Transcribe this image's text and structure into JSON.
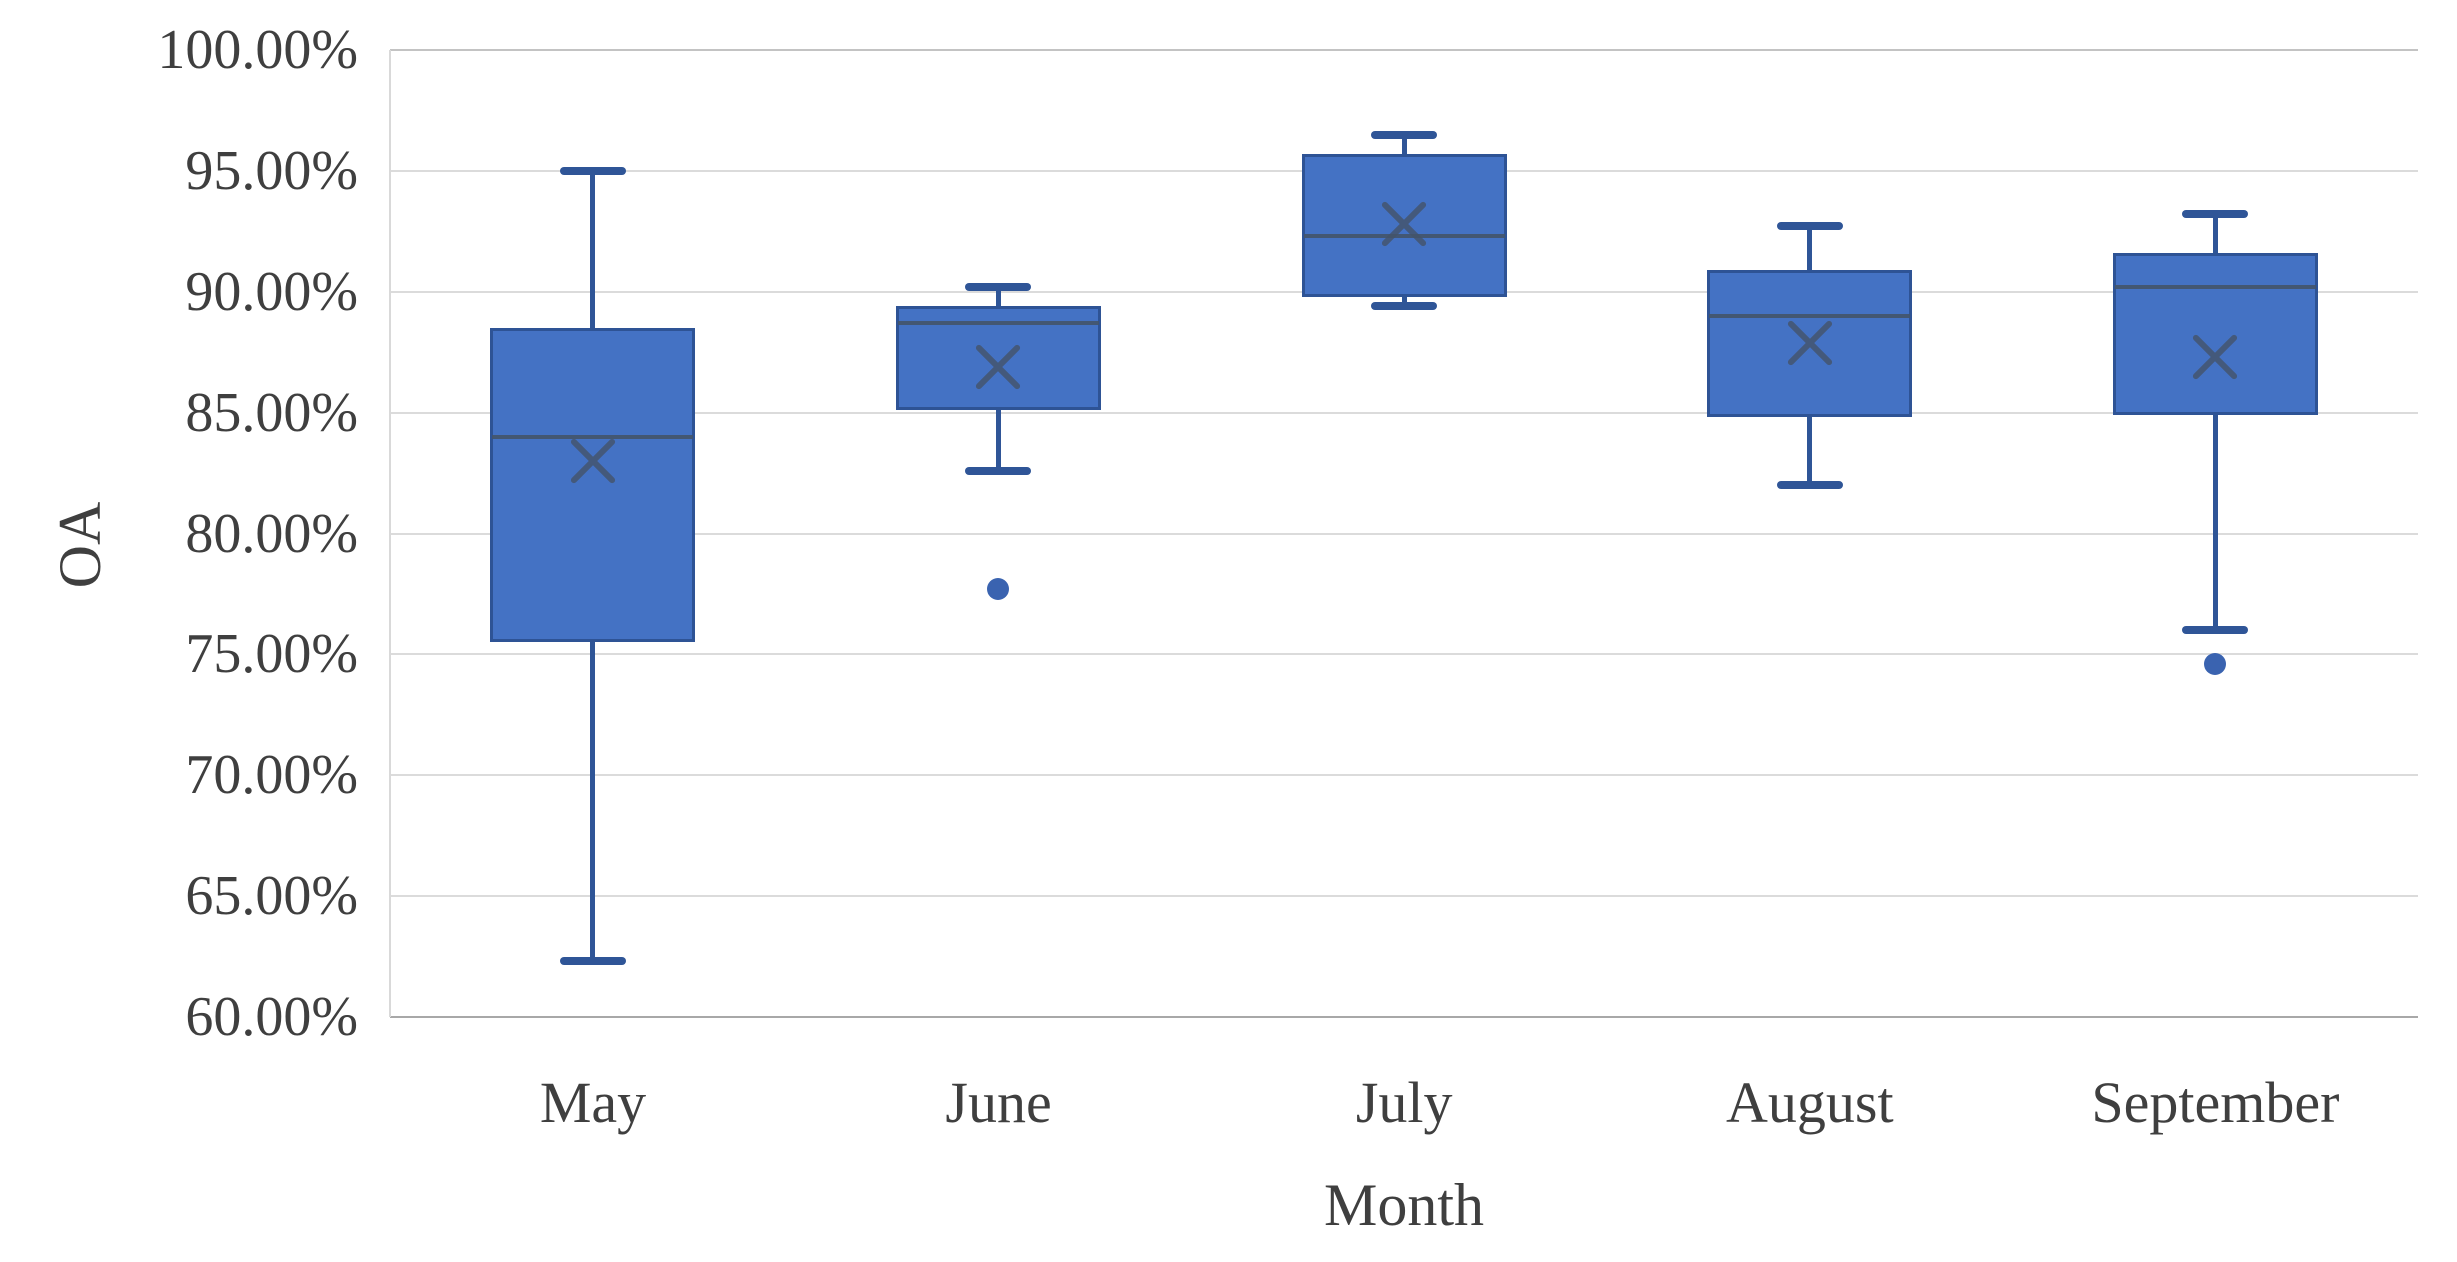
{
  "chart_data": {
    "type": "box",
    "title": "",
    "xlabel": "Month",
    "ylabel": "OA",
    "y_axis": {
      "min": 60,
      "max": 100,
      "step": 5,
      "unit": "%",
      "grid": true,
      "tick_labels": [
        "100.00%",
        "95.00%",
        "90.00%",
        "85.00%",
        "80.00%",
        "75.00%",
        "70.00%",
        "65.00%",
        "60.00%"
      ]
    },
    "categories": [
      "May",
      "June",
      "July",
      "August",
      "September"
    ],
    "series": [
      {
        "category": "May",
        "whisker_low": 62.3,
        "q1": 75.5,
        "median": 84.0,
        "mean": 83.0,
        "q3": 88.5,
        "whisker_high": 95.0,
        "outliers": []
      },
      {
        "category": "June",
        "whisker_low": 82.6,
        "q1": 85.1,
        "median": 88.7,
        "mean": 86.9,
        "q3": 89.4,
        "whisker_high": 90.2,
        "outliers": [
          77.7
        ]
      },
      {
        "category": "July",
        "whisker_low": 89.4,
        "q1": 89.8,
        "median": 92.3,
        "mean": 92.8,
        "q3": 95.7,
        "whisker_high": 96.5,
        "outliers": []
      },
      {
        "category": "August",
        "whisker_low": 82.0,
        "q1": 84.8,
        "median": 89.0,
        "mean": 87.9,
        "q3": 90.9,
        "whisker_high": 92.7,
        "outliers": []
      },
      {
        "category": "September",
        "whisker_low": 76.0,
        "q1": 84.9,
        "median": 90.2,
        "mean": 87.3,
        "q3": 91.6,
        "whisker_high": 93.2,
        "outliers": [
          74.6
        ]
      }
    ],
    "legend": null,
    "colors": {
      "box_fill": "#4472c4",
      "box_border": "#2e5395",
      "whisker": "#2f5597",
      "median": "#44546a",
      "mean_marker": "#44546a",
      "outlier": "#3a63b0",
      "gridline": "#dbdbdb",
      "axis_line": "#a8a8a8",
      "text": "#3f3f3f"
    }
  }
}
